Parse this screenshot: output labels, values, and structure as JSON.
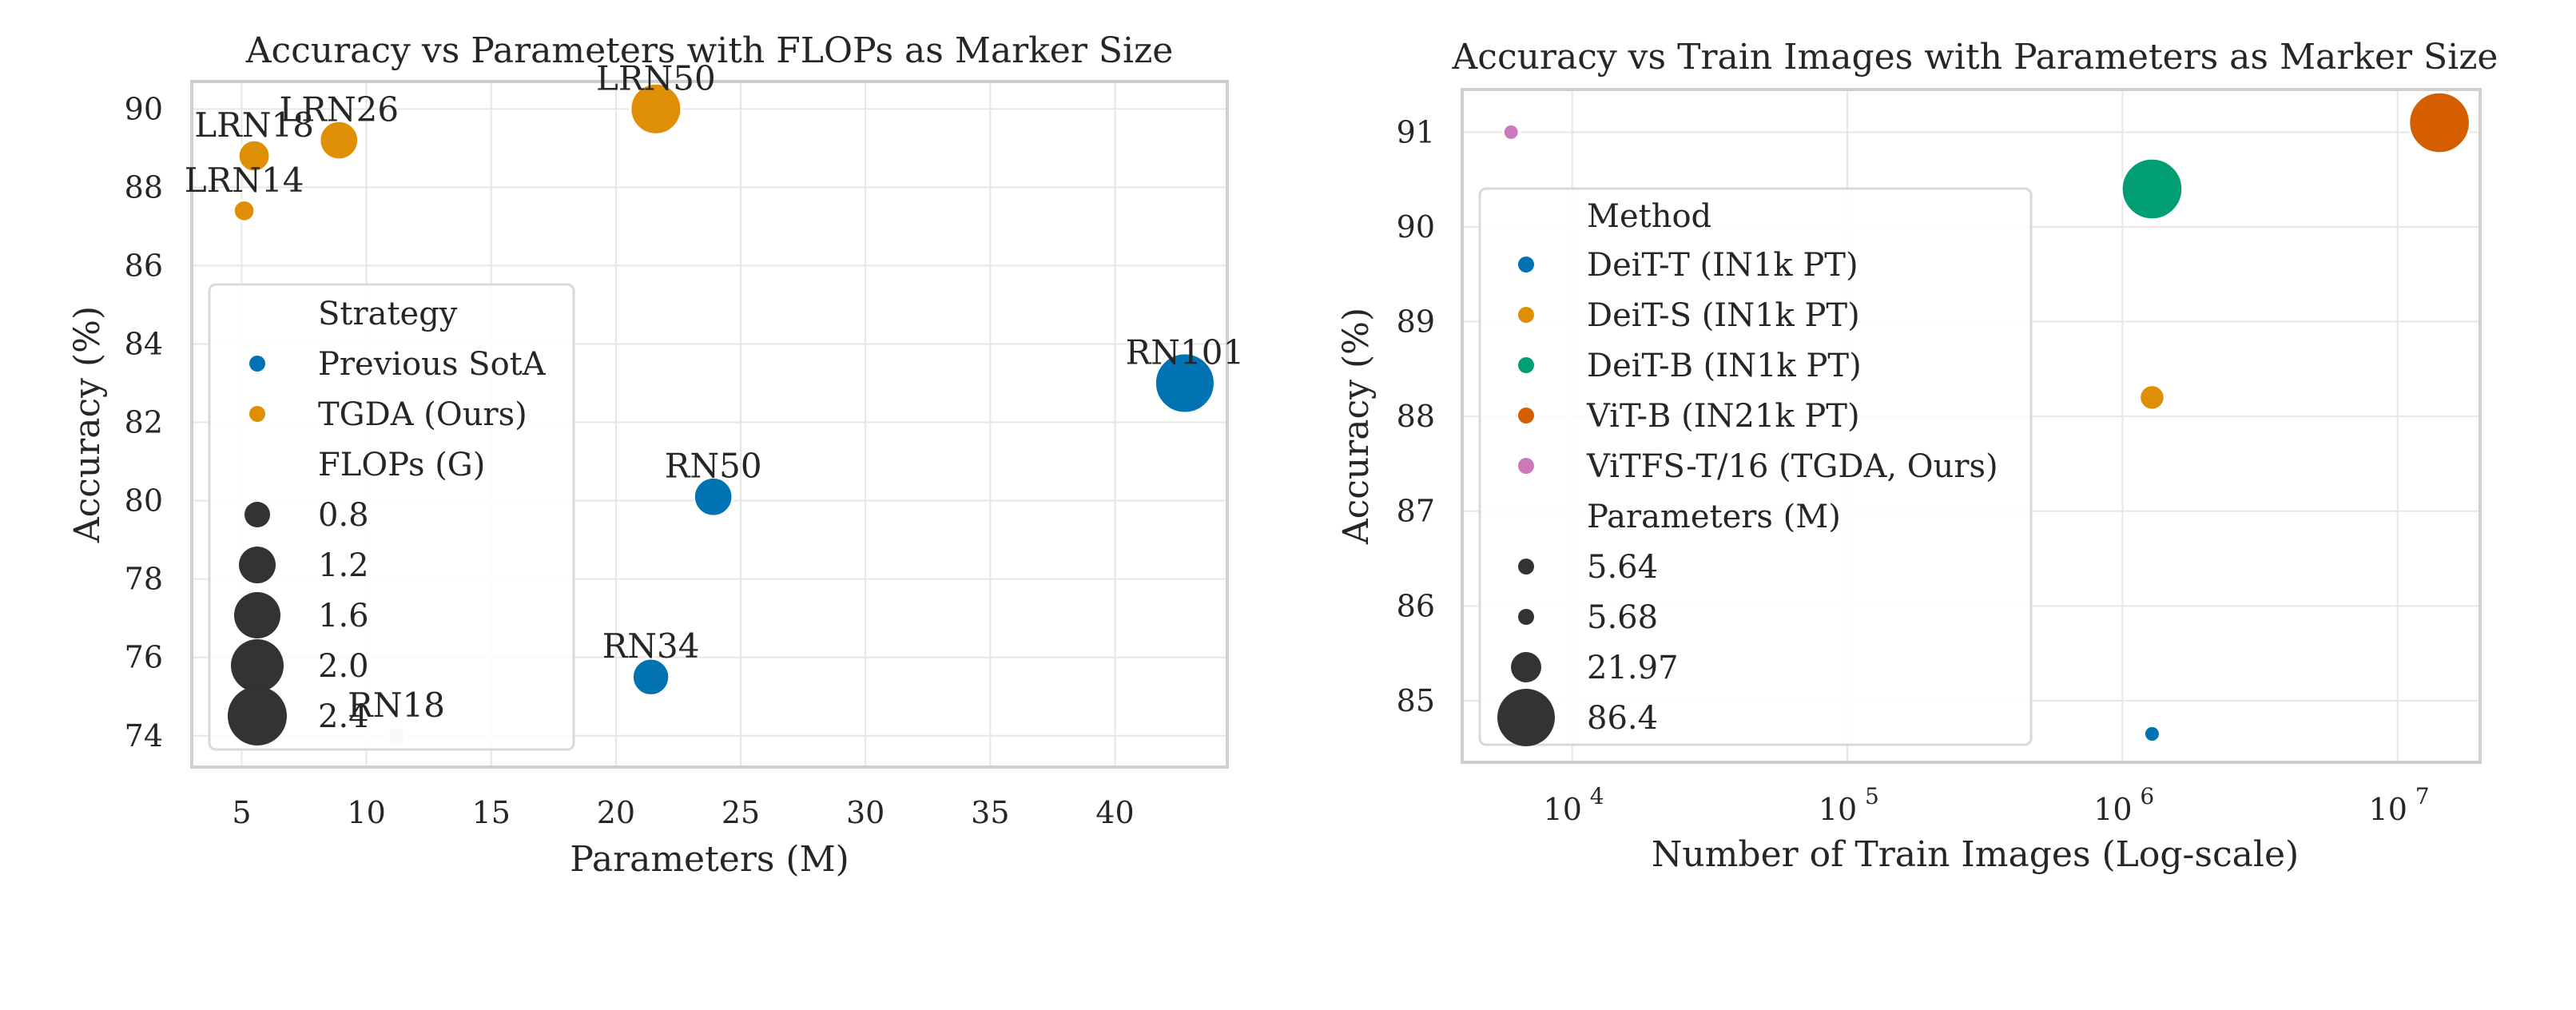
{
  "chart_data": [
    {
      "type": "scatter",
      "title": "Accuracy vs Parameters with FLOPs as Marker Size",
      "xlabel": "Parameters (M)",
      "ylabel": "Accuracy (%)",
      "xlim": [
        3,
        44.5
      ],
      "ylim": [
        73.2,
        90.7
      ],
      "xticks": [
        5,
        10,
        15,
        20,
        25,
        30,
        35,
        40
      ],
      "yticks": [
        74,
        76,
        78,
        80,
        82,
        84,
        86,
        88,
        90
      ],
      "grid": true,
      "legend_placement": "lower-left",
      "legend": {
        "hue_title": "Strategy",
        "hue_entries": [
          {
            "label": "Previous SotA",
            "color": "#0173b2"
          },
          {
            "label": "TGDA (Ours)",
            "color": "#de8f05"
          }
        ],
        "size_title": "FLOPs (G)",
        "size_entries": [
          "0.8",
          "1.2",
          "1.6",
          "2.0",
          "2.4"
        ]
      },
      "points": [
        {
          "label": "RN18",
          "x": 11.2,
          "y": 74.0,
          "size": 0.1,
          "color": "#c6dbef"
        },
        {
          "label": "RN34",
          "x": 21.4,
          "y": 75.5,
          "size": 1.2,
          "color": "#0173b2"
        },
        {
          "label": "RN50",
          "x": 23.9,
          "y": 80.1,
          "size": 1.3,
          "color": "#0173b2"
        },
        {
          "label": "RN101",
          "x": 42.8,
          "y": 83.0,
          "size": 2.5,
          "color": "#0173b2"
        },
        {
          "label": "LRN14",
          "x": 5.1,
          "y": 87.4,
          "size": 0.3,
          "color": "#de8f05"
        },
        {
          "label": "LRN18",
          "x": 5.5,
          "y": 88.8,
          "size": 0.9,
          "color": "#de8f05"
        },
        {
          "label": "LRN26",
          "x": 8.9,
          "y": 89.2,
          "size": 1.3,
          "color": "#de8f05"
        },
        {
          "label": "LRN50",
          "x": 21.6,
          "y": 90.0,
          "size": 2.0,
          "color": "#de8f05"
        }
      ]
    },
    {
      "type": "scatter",
      "title": "Accuracy vs Train Images with Parameters as Marker Size",
      "xlabel": "Number of Train Images (Log-scale)",
      "ylabel": "Accuracy (%)",
      "xscale": "log",
      "xlim": [
        3981,
        19953000
      ],
      "ylim": [
        84.35,
        91.45
      ],
      "xticks": [
        10000,
        100000,
        1000000,
        10000000
      ],
      "xtick_base": "10",
      "xtick_exponents": [
        "4",
        "5",
        "6",
        "7"
      ],
      "yticks": [
        85,
        86,
        87,
        88,
        89,
        90,
        91
      ],
      "grid": true,
      "legend_placement": "lower-left",
      "legend": {
        "hue_title": "Method",
        "hue_entries": [
          {
            "label": "DeiT-T (IN1k PT)",
            "color": "#0173b2"
          },
          {
            "label": "DeiT-S (IN1k PT)",
            "color": "#de8f05"
          },
          {
            "label": "DeiT-B (IN1k PT)",
            "color": "#029e73"
          },
          {
            "label": "ViT-B (IN21k PT)",
            "color": "#d55e00"
          },
          {
            "label": "ViTFS-T/16 (TGDA, Ours)",
            "color": "#cc78bc"
          }
        ],
        "size_title": "Parameters (M)",
        "size_entries": [
          "5.64",
          "5.68",
          "21.97",
          "86.4"
        ]
      },
      "points": [
        {
          "method": "DeiT-T (IN1k PT)",
          "x": 1281167,
          "y": 84.65,
          "params": 5.68,
          "color": "#0173b2"
        },
        {
          "method": "DeiT-S (IN1k PT)",
          "x": 1281167,
          "y": 88.2,
          "params": 21.97,
          "color": "#de8f05"
        },
        {
          "method": "DeiT-B (IN1k PT)",
          "x": 1281167,
          "y": 90.4,
          "params": 86.4,
          "color": "#029e73"
        },
        {
          "method": "ViT-B (IN21k PT)",
          "x": 14197122,
          "y": 91.1,
          "params": 86.4,
          "color": "#d55e00"
        },
        {
          "method": "ViTFS-T/16 (TGDA, Ours)",
          "x": 5994,
          "y": 91.0,
          "params": 5.64,
          "color": "#cc78bc"
        }
      ]
    }
  ]
}
